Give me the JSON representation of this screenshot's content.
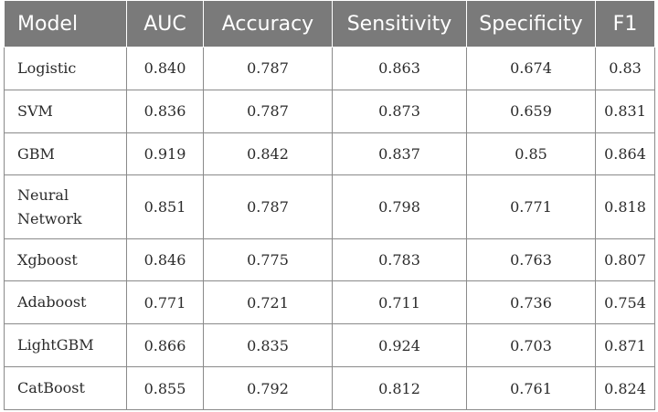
{
  "table": {
    "headers": [
      "Model",
      "AUC",
      "Accuracy",
      "Sensitivity",
      "Specificity",
      "F1"
    ],
    "rows": [
      [
        "Logistic",
        "0.840",
        "0.787",
        "0.863",
        "0.674",
        "0.83"
      ],
      [
        "SVM",
        "0.836",
        "0.787",
        "0.873",
        "0.659",
        "0.831"
      ],
      [
        "GBM",
        "0.919",
        "0.842",
        "0.837",
        "0.85",
        "0.864"
      ],
      [
        "Neural Network",
        "0.851",
        "0.787",
        "0.798",
        "0.771",
        "0.818"
      ],
      [
        "Xgboost",
        "0.846",
        "0.775",
        "0.783",
        "0.763",
        "0.807"
      ],
      [
        "Adaboost",
        "0.771",
        "0.721",
        "0.711",
        "0.736",
        "0.754"
      ],
      [
        "LightGBM",
        "0.866",
        "0.835",
        "0.924",
        "0.703",
        "0.871"
      ],
      [
        "CatBoost",
        "0.855",
        "0.792",
        "0.812",
        "0.761",
        "0.824"
      ]
    ]
  }
}
